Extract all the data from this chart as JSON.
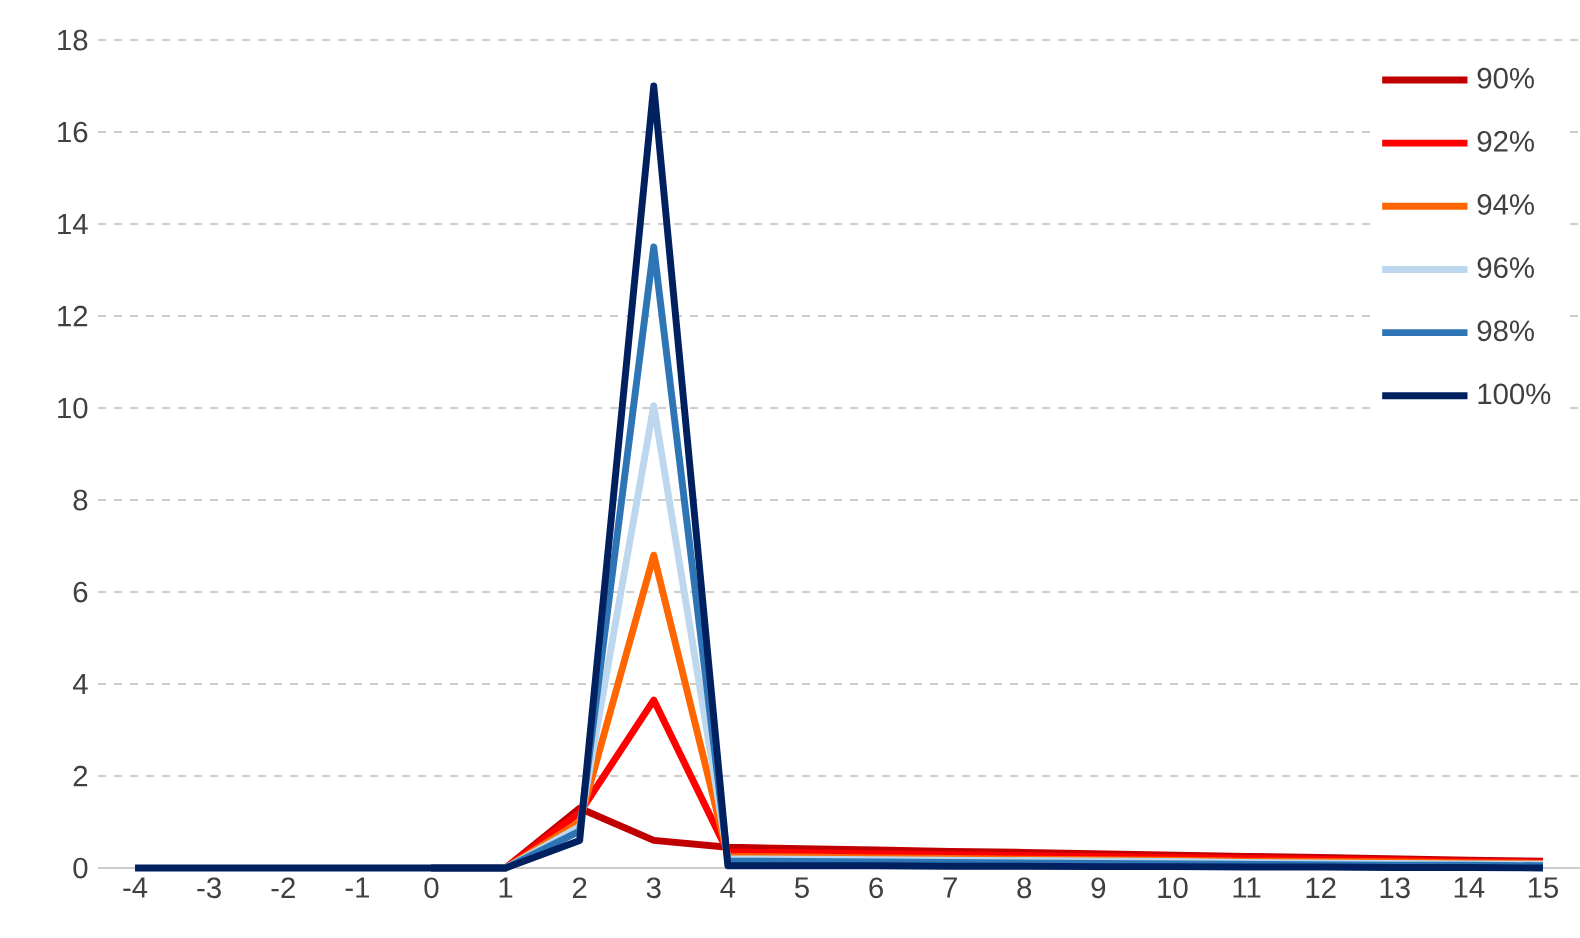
{
  "chart_data": {
    "type": "line",
    "categories": [
      "-4",
      "-3",
      "-2",
      "-1",
      "0",
      "1",
      "2",
      "3",
      "4",
      "5",
      "6",
      "7",
      "8",
      "9",
      "10",
      "11",
      "12",
      "13",
      "14",
      "15"
    ],
    "ylim": [
      0,
      18
    ],
    "yticks": [
      0,
      2,
      4,
      6,
      8,
      10,
      12,
      14,
      16,
      18
    ],
    "grid": "y",
    "legend": "top right",
    "marker": "none",
    "line_style": "solid",
    "series": [
      {
        "name": "90%",
        "color": "#c00000",
        "values": [
          null,
          null,
          null,
          null,
          0,
          0,
          1.3,
          0.6,
          0.45,
          0.42,
          0.39,
          0.36,
          0.34,
          0.31,
          0.28,
          0.25,
          0.23,
          0.2,
          0.17,
          0.15
        ]
      },
      {
        "name": "92%",
        "color": "#ff0000",
        "values": [
          null,
          null,
          null,
          null,
          0,
          0,
          1.2,
          3.65,
          0.35,
          0.33,
          0.31,
          0.29,
          0.27,
          0.25,
          0.23,
          0.21,
          0.19,
          0.17,
          0.14,
          0.12
        ]
      },
      {
        "name": "94%",
        "color": "#ff6600",
        "values": [
          null,
          null,
          null,
          null,
          0,
          0,
          1.0,
          6.8,
          0.25,
          0.24,
          0.22,
          0.21,
          0.19,
          0.18,
          0.17,
          0.15,
          0.14,
          0.13,
          0.11,
          0.1
        ]
      },
      {
        "name": "96%",
        "color": "#bdd7ee",
        "values": [
          null,
          null,
          null,
          null,
          0,
          0,
          0.9,
          10.05,
          0.2,
          0.19,
          0.18,
          0.17,
          0.16,
          0.15,
          0.14,
          0.12,
          0.11,
          0.1,
          0.09,
          0.08
        ]
      },
      {
        "name": "98%",
        "color": "#2e75b6",
        "values": [
          null,
          null,
          null,
          null,
          0,
          0,
          0.8,
          13.5,
          0.15,
          0.14,
          0.13,
          0.12,
          0.11,
          0.1,
          0.09,
          0.08,
          0.07,
          0.06,
          0.06,
          0.05
        ]
      },
      {
        "name": "100%",
        "color": "#002060",
        "values": [
          0,
          0,
          0,
          0,
          0,
          0,
          0.6,
          17,
          0.05,
          0.05,
          0.05,
          0.04,
          0.04,
          0.03,
          0.03,
          0.02,
          0.02,
          0.01,
          0.01,
          0
        ]
      }
    ]
  }
}
